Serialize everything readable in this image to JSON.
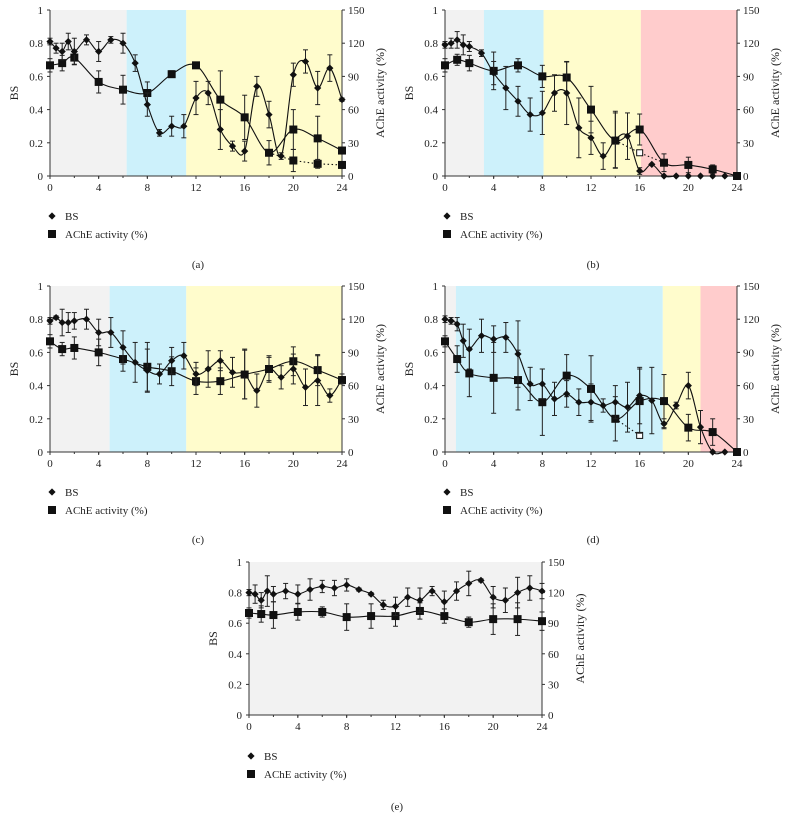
{
  "colors": {
    "night": "#f2f2f2",
    "blue": "#cdf1fb",
    "yellow": "#fffccc",
    "red": "#ffcccc",
    "ink": "#111111"
  },
  "chart_data": [
    {
      "panel_label": "(a)",
      "type": "line",
      "ylabel": "BS",
      "y2label": "AChE activity (%)",
      "xlim": [
        0,
        24
      ],
      "xticks": [
        0,
        4,
        8,
        12,
        16,
        20,
        24
      ],
      "ylim": [
        0,
        1
      ],
      "yticks": [
        "0",
        "0.2",
        "0.4",
        "0.6",
        "0.8",
        "1"
      ],
      "y2lim": [
        0,
        150
      ],
      "y2ticks": [
        "0",
        "30",
        "60",
        "90",
        "120",
        "150"
      ],
      "legend": [
        "BS",
        "AChE activity (%)"
      ],
      "legend_position": "below",
      "bands": [
        {
          "from": 0,
          "to": 6.3,
          "color": "night"
        },
        {
          "from": 6.3,
          "to": 11.2,
          "color": "blue"
        },
        {
          "from": 11.2,
          "to": 24,
          "color": "yellow"
        }
      ],
      "bs": {
        "x": [
          0,
          0.5,
          1,
          1.5,
          2,
          3,
          4,
          5,
          6,
          7,
          8,
          9,
          10,
          11,
          12,
          13,
          14,
          15,
          16,
          17,
          18,
          19,
          20,
          21,
          22,
          23,
          24
        ],
        "y": [
          0.81,
          0.77,
          0.75,
          0.81,
          0.75,
          0.82,
          0.75,
          0.82,
          0.8,
          0.68,
          0.43,
          0.26,
          0.3,
          0.3,
          0.47,
          0.5,
          0.28,
          0.18,
          0.15,
          0.54,
          0.37,
          0.12,
          0.61,
          0.69,
          0.53,
          0.65,
          0.46
        ],
        "err": [
          0.02,
          0.03,
          0.05,
          0.05,
          0.08,
          0.03,
          0.06,
          0.02,
          0.06,
          0.05,
          0.07,
          0.02,
          0.06,
          0.07,
          0.1,
          0.07,
          0.12,
          0.03,
          0.06,
          0.06,
          0.08,
          0.02,
          0.07,
          0.07,
          0.1,
          0.08,
          0.01
        ]
      },
      "ache": {
        "x": [
          0,
          1,
          2,
          4,
          6,
          8,
          10,
          12,
          14,
          16,
          18,
          20,
          22,
          24
        ],
        "y": [
          100,
          102,
          107,
          85,
          78,
          75,
          92,
          100,
          69,
          53,
          21,
          42,
          34,
          23
        ],
        "err": [
          6,
          7,
          6,
          10,
          13,
          10,
          3,
          2,
          26,
          20,
          11,
          18,
          20,
          3
        ]
      },
      "ache_dotted": {
        "x": [
          18,
          20,
          22,
          24
        ],
        "y": [
          21,
          14,
          11,
          10
        ],
        "err": [
          0,
          10,
          4,
          3
        ],
        "filled": true
      }
    },
    {
      "panel_label": "(b)",
      "type": "line",
      "ylabel": "BS",
      "y2label": "AChE activity (%)",
      "xlim": [
        0,
        24
      ],
      "xticks": [
        0,
        4,
        8,
        12,
        16,
        20,
        24
      ],
      "ylim": [
        0,
        1
      ],
      "yticks": [
        "0",
        "0.2",
        "0.4",
        "0.6",
        "0.8",
        "1"
      ],
      "y2lim": [
        0,
        150
      ],
      "y2ticks": [
        "0",
        "30",
        "60",
        "90",
        "120",
        "150"
      ],
      "legend": [
        "BS",
        "AChE activity (%)"
      ],
      "legend_position": "below",
      "bands": [
        {
          "from": 0,
          "to": 3.2,
          "color": "night"
        },
        {
          "from": 3.2,
          "to": 8.1,
          "color": "blue"
        },
        {
          "from": 8.1,
          "to": 16.1,
          "color": "yellow"
        },
        {
          "from": 16.1,
          "to": 24,
          "color": "red"
        }
      ],
      "bs": {
        "x": [
          0,
          0.5,
          1,
          1.5,
          2,
          3,
          4,
          5,
          6,
          7,
          8,
          9,
          10,
          11,
          12,
          13,
          14,
          15,
          16,
          17,
          18,
          19,
          20,
          21,
          22,
          23,
          24
        ],
        "y": [
          0.79,
          0.8,
          0.82,
          0.79,
          0.78,
          0.74,
          0.62,
          0.53,
          0.45,
          0.37,
          0.38,
          0.5,
          0.5,
          0.29,
          0.23,
          0.12,
          0.22,
          0.24,
          0.03,
          0.07,
          0,
          0,
          0,
          0,
          0,
          0,
          0
        ],
        "err": [
          0.02,
          0.03,
          0.05,
          0.06,
          0.03,
          0.02,
          0.07,
          0.13,
          0.09,
          0.1,
          0.13,
          0.11,
          0.19,
          0.18,
          0.1,
          0.08,
          0.17,
          0.14,
          0.02,
          0,
          0,
          0,
          0,
          0,
          0,
          0,
          0
        ]
      },
      "ache": {
        "x": [
          0,
          1,
          2,
          4,
          6,
          8,
          10,
          12,
          14,
          16,
          18,
          20,
          22,
          24
        ],
        "y": [
          100,
          105,
          102,
          95,
          100,
          90,
          89,
          60,
          32,
          42,
          12,
          10,
          6,
          0
        ],
        "err": [
          6,
          5,
          7,
          17,
          6,
          10,
          14,
          21,
          25,
          14,
          8,
          7,
          4,
          0
        ]
      },
      "ache_dotted": {
        "x": [
          14,
          16,
          18
        ],
        "y": [
          32,
          21,
          12
        ],
        "err": [
          0,
          0,
          0
        ],
        "filled": false
      }
    },
    {
      "panel_label": "(c)",
      "type": "line",
      "ylabel": "BS",
      "y2label": "AChE activity (%)",
      "xlim": [
        0,
        24
      ],
      "xticks": [
        0,
        4,
        8,
        12,
        16,
        20,
        24
      ],
      "ylim": [
        0,
        1
      ],
      "yticks": [
        "0",
        "0.2",
        "0.4",
        "0.6",
        "0.8",
        "1"
      ],
      "y2lim": [
        0,
        150
      ],
      "y2ticks": [
        "0",
        "30",
        "60",
        "90",
        "120",
        "150"
      ],
      "legend": [
        "BS",
        "AChE activity (%)"
      ],
      "legend_position": "below",
      "bands": [
        {
          "from": 0,
          "to": 4.9,
          "color": "night"
        },
        {
          "from": 4.9,
          "to": 11.2,
          "color": "blue"
        },
        {
          "from": 11.2,
          "to": 24,
          "color": "yellow"
        }
      ],
      "bs": {
        "x": [
          0,
          0.5,
          1,
          1.5,
          2,
          3,
          4,
          5,
          6,
          7,
          8,
          9,
          10,
          11,
          12,
          13,
          14,
          15,
          16,
          17,
          18,
          19,
          20,
          21,
          22,
          23,
          24
        ],
        "y": [
          0.79,
          0.81,
          0.78,
          0.78,
          0.79,
          0.8,
          0.72,
          0.72,
          0.63,
          0.54,
          0.49,
          0.47,
          0.55,
          0.58,
          0.47,
          0.5,
          0.55,
          0.48,
          0.47,
          0.37,
          0.5,
          0.45,
          0.5,
          0.39,
          0.43,
          0.34,
          0.44
        ],
        "err": [
          0.02,
          0.01,
          0.08,
          0.06,
          0.05,
          0.06,
          0.08,
          0.09,
          0.1,
          0.12,
          0.13,
          0.06,
          0.08,
          0.08,
          0.07,
          0.11,
          0.06,
          0.09,
          0.15,
          0.1,
          0.07,
          0.07,
          0.09,
          0.11,
          0.15,
          0.04,
          0.03
        ]
      },
      "ache": {
        "x": [
          0,
          1,
          2,
          4,
          6,
          8,
          10,
          12,
          14,
          16,
          18,
          20,
          22,
          24
        ],
        "y": [
          100,
          93,
          94,
          90,
          84,
          77,
          73,
          64,
          64,
          70,
          75,
          82,
          74,
          65
        ],
        "err": [
          6,
          6,
          10,
          12,
          11,
          22,
          13,
          12,
          12,
          22,
          12,
          13,
          14,
          3
        ]
      }
    },
    {
      "panel_label": "(d)",
      "type": "line",
      "ylabel": "BS",
      "y2label": "AChE activity (%)",
      "xlim": [
        0,
        24
      ],
      "xticks": [
        0,
        4,
        8,
        12,
        16,
        20,
        24
      ],
      "ylim": [
        0,
        1
      ],
      "yticks": [
        "0",
        "0.2",
        "0.4",
        "0.6",
        "0.8",
        "1"
      ],
      "y2lim": [
        0,
        150
      ],
      "y2ticks": [
        "0",
        "30",
        "60",
        "90",
        "120",
        "150"
      ],
      "legend": [
        "BS",
        "AChE activity (%)"
      ],
      "legend_position": "below",
      "bands": [
        {
          "from": 0,
          "to": 0.9,
          "color": "night"
        },
        {
          "from": 0.9,
          "to": 17.9,
          "color": "blue"
        },
        {
          "from": 17.9,
          "to": 21,
          "color": "yellow"
        },
        {
          "from": 21,
          "to": 24,
          "color": "red"
        }
      ],
      "bs": {
        "x": [
          0,
          0.5,
          1,
          1.5,
          2,
          3,
          4,
          5,
          6,
          7,
          8,
          9,
          10,
          11,
          12,
          13,
          14,
          15,
          16,
          17,
          18,
          19,
          20,
          21,
          22,
          23,
          24
        ],
        "y": [
          0.8,
          0.79,
          0.77,
          0.67,
          0.62,
          0.7,
          0.68,
          0.69,
          0.59,
          0.41,
          0.41,
          0.32,
          0.35,
          0.3,
          0.3,
          0.28,
          0.3,
          0.27,
          0.34,
          0.31,
          0.17,
          0.28,
          0.4,
          0.15,
          0,
          0,
          0
        ],
        "err": [
          0.02,
          0.02,
          0.04,
          0.1,
          0.12,
          0.1,
          0.08,
          0.09,
          0.2,
          0.1,
          0.09,
          0.1,
          0.08,
          0.08,
          0.11,
          0.04,
          0.1,
          0.15,
          0.17,
          0.2,
          0.03,
          0.02,
          0.08,
          0.1,
          0,
          0,
          0
        ]
      },
      "ache": {
        "x": [
          0,
          1,
          2,
          4,
          6,
          8,
          10,
          12,
          14,
          16,
          18,
          20,
          22,
          24
        ],
        "y": [
          100,
          84,
          71,
          67,
          65,
          45,
          69,
          57,
          30,
          46,
          46,
          22,
          18,
          0
        ],
        "err": [
          5,
          12,
          21,
          32,
          27,
          30,
          19,
          30,
          20,
          29,
          24,
          12,
          12,
          0
        ]
      },
      "ache_dotted": {
        "x": [
          14,
          16
        ],
        "y": [
          30,
          15
        ],
        "err": [
          0,
          0
        ],
        "filled": false
      }
    },
    {
      "panel_label": "(e)",
      "type": "line",
      "ylabel": "BS",
      "y2label": "AChE activity (%)",
      "xlim": [
        0,
        24
      ],
      "xticks": [
        0,
        4,
        8,
        12,
        16,
        20,
        24
      ],
      "ylim": [
        0,
        1
      ],
      "yticks": [
        "0",
        "0.2",
        "0.4",
        "0.6",
        "0.8",
        "1"
      ],
      "y2lim": [
        0,
        150
      ],
      "y2ticks": [
        "0",
        "30",
        "60",
        "90",
        "120",
        "150"
      ],
      "legend": [
        "BS",
        "AChE activity (%)"
      ],
      "legend_position": "below",
      "bands": [
        {
          "from": 0,
          "to": 24,
          "color": "night"
        }
      ],
      "bs": {
        "x": [
          0,
          0.5,
          1,
          1.5,
          2,
          3,
          4,
          5,
          6,
          7,
          8,
          9,
          10,
          11,
          12,
          13,
          14,
          15,
          16,
          17,
          18,
          19,
          20,
          21,
          22,
          23,
          24
        ],
        "y": [
          0.8,
          0.79,
          0.75,
          0.81,
          0.79,
          0.81,
          0.79,
          0.82,
          0.84,
          0.83,
          0.85,
          0.82,
          0.79,
          0.72,
          0.71,
          0.77,
          0.75,
          0.81,
          0.74,
          0.81,
          0.86,
          0.88,
          0.77,
          0.75,
          0.8,
          0.83,
          0.81
        ],
        "err": [
          0.02,
          0.06,
          0.05,
          0.1,
          0.05,
          0.05,
          0.06,
          0.07,
          0.04,
          0.05,
          0.04,
          0.01,
          0.01,
          0.03,
          0.06,
          0.06,
          0.08,
          0.03,
          0.07,
          0.06,
          0.08,
          0.01,
          0.07,
          0.08,
          0.1,
          0.08,
          0.05
        ]
      },
      "ache": {
        "x": [
          0,
          1,
          2,
          4,
          6,
          8,
          10,
          12,
          14,
          16,
          18,
          20,
          22,
          24
        ],
        "y": [
          100,
          99,
          98,
          101,
          101,
          96,
          97,
          97,
          102,
          97,
          91,
          94,
          94,
          92
        ],
        "err": [
          5,
          8,
          13,
          8,
          5,
          13,
          12,
          10,
          8,
          7,
          5,
          15,
          16,
          9
        ]
      }
    }
  ]
}
